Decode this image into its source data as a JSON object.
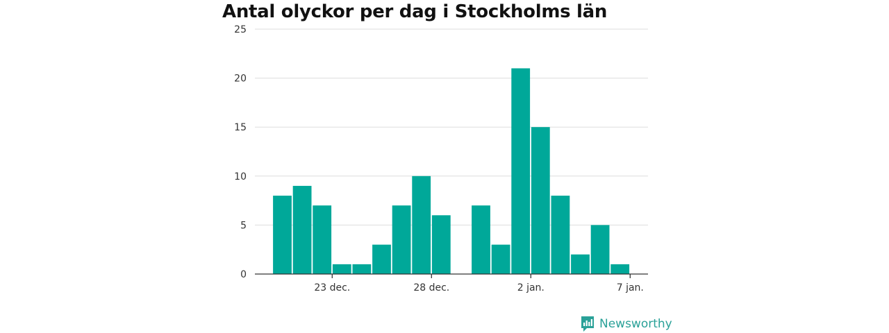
{
  "chart_data": {
    "type": "bar",
    "title": "Antal olyckor per dag i Stockholms län",
    "xlabel": "",
    "ylabel": "",
    "categories": [
      "20 dec.",
      "21 dec.",
      "22 dec.",
      "23 dec.",
      "24 dec.",
      "25 dec.",
      "26 dec.",
      "27 dec.",
      "28 dec.",
      "29 dec.",
      "30 dec.",
      "31 dec.",
      "1 jan.",
      "2 jan.",
      "3 jan.",
      "4 jan.",
      "5 jan.",
      "6 jan."
    ],
    "values": [
      8,
      9,
      7,
      1,
      1,
      3,
      7,
      10,
      6,
      0,
      7,
      3,
      21,
      15,
      8,
      2,
      5,
      1
    ],
    "ylim": [
      0,
      25
    ],
    "yticks": [
      0,
      5,
      10,
      15,
      20,
      25
    ],
    "xticks": [
      {
        "label": "23 dec.",
        "index": 3
      },
      {
        "label": "28 dec.",
        "index": 8
      },
      {
        "label": "2 jan.",
        "index": 13
      },
      {
        "label": "7 jan.",
        "index": 18
      }
    ],
    "grid": true,
    "legend": "none",
    "bar_color": "#00a899"
  },
  "brand": {
    "name": "Newsworthy",
    "icon": "newsworthy-logo-icon",
    "color": "#2aa198"
  }
}
